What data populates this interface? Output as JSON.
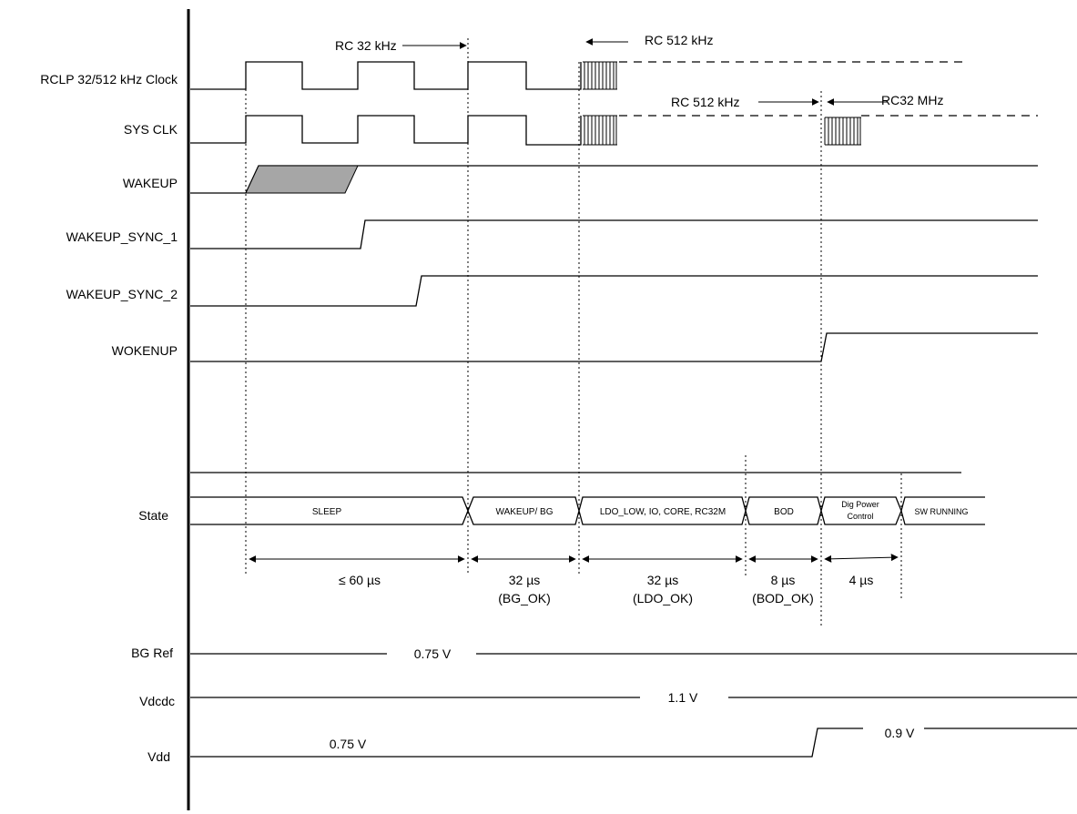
{
  "signals": {
    "rclp_clock": "RCLP 32/512 kHz Clock",
    "sys_clk": "SYS CLK",
    "wakeup": "WAKEUP",
    "wakeup_sync_1": "WAKEUP_SYNC_1",
    "wakeup_sync_2": "WAKEUP_SYNC_2",
    "wokenup": "WOKENUP",
    "state": "State",
    "bg_ref": "BG Ref",
    "vdcdc": "Vdcdc",
    "vdd": "Vdd"
  },
  "clock_annotations": {
    "rc32k": "RC 32 kHz",
    "rc512k_top": "RC 512 kHz",
    "rc512k_sys": "RC 512 kHz",
    "rc32m": "RC32 MHz"
  },
  "states": {
    "sleep": "SLEEP",
    "wakeup_bg": "WAKEUP/ BG",
    "ldo": "LDO_LOW, IO, CORE, RC32M",
    "bod": "BOD",
    "dig_power_1": "Dig Power",
    "dig_power_2": "Control",
    "sw_running": "SW RUNNING"
  },
  "durations": {
    "sleep": "≤ 60 µs",
    "bg": "32 µs",
    "bg_cond": "(BG_OK)",
    "ldo": "32 µs",
    "ldo_cond": "(LDO_OK)",
    "bod": "8 µs",
    "bod_cond": "(BOD_OK)",
    "dig": "4 µs"
  },
  "voltages": {
    "bg_ref": "0.75 V",
    "vdcdc": "1.1 V",
    "vdd_low": "0.75 V",
    "vdd_high": "0.9 V"
  }
}
